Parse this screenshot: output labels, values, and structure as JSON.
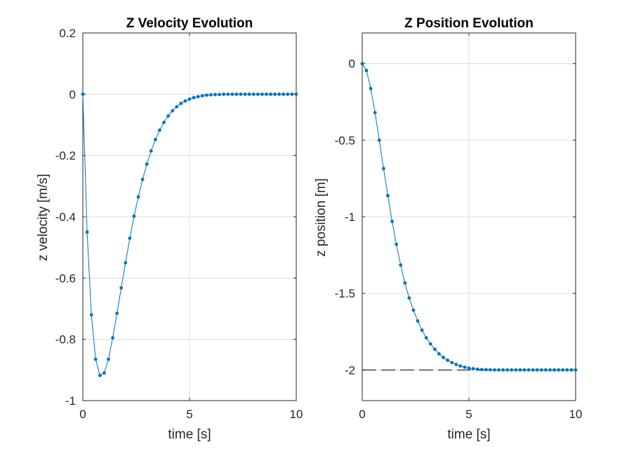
{
  "chart_data": [
    {
      "type": "line",
      "title": "Z Velocity Evolution",
      "xlabel": "time [s]",
      "ylabel": "z velocity [m/s]",
      "xlim": [
        0,
        10
      ],
      "ylim": [
        -1,
        0.2
      ],
      "xticks": [
        0,
        5,
        10
      ],
      "xtick_labels": [
        "0",
        "5",
        "10"
      ],
      "yticks": [
        0.2,
        0,
        -0.2,
        -0.4,
        -0.6,
        -0.8,
        -1
      ],
      "ytick_labels": [
        "0.2",
        "0",
        "-0.2",
        "-0.4",
        "-0.6",
        "-0.8",
        "-1"
      ],
      "grid": true,
      "series": [
        {
          "color": "#0072bd",
          "marker": "dot",
          "x": [
            0,
            0.2,
            0.4,
            0.6,
            0.8,
            1.0,
            1.2,
            1.4,
            1.6,
            1.8,
            2.0,
            2.2,
            2.4,
            2.6,
            2.8,
            3.0,
            3.2,
            3.4,
            3.6,
            3.8,
            4.0,
            4.2,
            4.4,
            4.6,
            4.8,
            5.0,
            5.2,
            5.4,
            5.6,
            5.8,
            6.0,
            6.2,
            6.4,
            6.6,
            6.8,
            7.0,
            7.2,
            7.4,
            7.6,
            7.8,
            8.0,
            8.2,
            8.4,
            8.6,
            8.8,
            9.0,
            9.2,
            9.4,
            9.6,
            9.8,
            10.0
          ],
          "y": [
            0,
            -0.45,
            -0.72,
            -0.865,
            -0.918,
            -0.91,
            -0.865,
            -0.795,
            -0.715,
            -0.632,
            -0.55,
            -0.47,
            -0.398,
            -0.335,
            -0.278,
            -0.228,
            -0.185,
            -0.148,
            -0.117,
            -0.092,
            -0.071,
            -0.054,
            -0.041,
            -0.03,
            -0.022,
            -0.016,
            -0.011,
            -0.008,
            -0.005,
            -0.003,
            -0.002,
            -0.001,
            -0.001,
            0,
            0,
            0,
            0,
            0,
            0,
            0,
            0,
            0,
            0,
            0,
            0,
            0,
            0,
            0,
            0,
            0,
            0
          ]
        }
      ]
    },
    {
      "type": "line",
      "title": "Z Position Evolution",
      "xlabel": "time [s]",
      "ylabel": "z position [m]",
      "xlim": [
        0,
        10
      ],
      "ylim": [
        -2.2,
        0.2
      ],
      "xticks": [
        0,
        5,
        10
      ],
      "xtick_labels": [
        "0",
        "5",
        "10"
      ],
      "yticks": [
        0,
        -0.5,
        -1,
        -1.5,
        -2
      ],
      "ytick_labels": [
        "0",
        "-0.5",
        "-1",
        "-1.5",
        "-2"
      ],
      "grid": true,
      "reference": {
        "y": -2,
        "color": "#000000",
        "style": "dashed"
      },
      "series": [
        {
          "color": "#0072bd",
          "marker": "dot",
          "x": [
            0,
            0.2,
            0.4,
            0.6,
            0.8,
            1.0,
            1.2,
            1.4,
            1.6,
            1.8,
            2.0,
            2.2,
            2.4,
            2.6,
            2.8,
            3.0,
            3.2,
            3.4,
            3.6,
            3.8,
            4.0,
            4.2,
            4.4,
            4.6,
            4.8,
            5.0,
            5.2,
            5.4,
            5.6,
            5.8,
            6.0,
            6.2,
            6.4,
            6.6,
            6.8,
            7.0,
            7.2,
            7.4,
            7.6,
            7.8,
            8.0,
            8.2,
            8.4,
            8.6,
            8.8,
            9.0,
            9.2,
            9.4,
            9.6,
            9.8,
            10.0
          ],
          "y": [
            0,
            -0.045,
            -0.163,
            -0.32,
            -0.5,
            -0.685,
            -0.862,
            -1.03,
            -1.18,
            -1.315,
            -1.432,
            -1.53,
            -1.61,
            -1.68,
            -1.74,
            -1.79,
            -1.83,
            -1.865,
            -1.895,
            -1.918,
            -1.937,
            -1.952,
            -1.964,
            -1.974,
            -1.982,
            -1.988,
            -1.992,
            -1.995,
            -1.997,
            -1.998,
            -1.999,
            -2,
            -2,
            -2,
            -2,
            -2,
            -2,
            -2,
            -2,
            -2,
            -2,
            -2,
            -2,
            -2,
            -2,
            -2,
            -2,
            -2,
            -2,
            -2,
            -2
          ]
        }
      ]
    }
  ]
}
